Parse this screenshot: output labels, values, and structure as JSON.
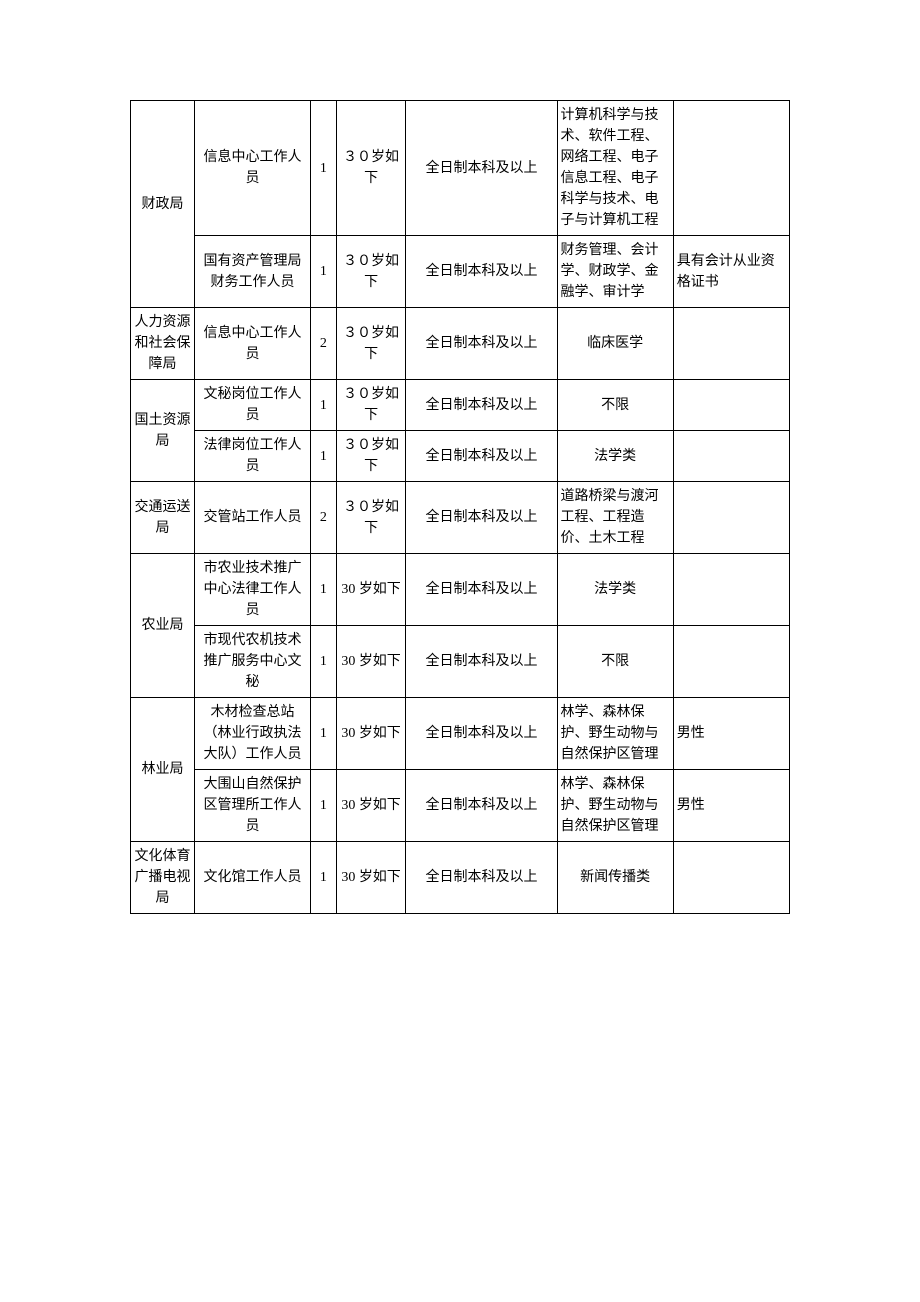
{
  "table": {
    "background_color": "#ffffff",
    "border_color": "#000000",
    "font_size": 14,
    "rows": [
      {
        "dept": "财政局",
        "dept_rowspan": 2,
        "position": "信息中心工作人员",
        "count": "1",
        "age": "３０岁如下",
        "edu": "全日制本科及以上",
        "major": "计算机科学与技术、软件工程、网络工程、电子信息工程、电子科学与技术、电子与计算机工程",
        "note": ""
      },
      {
        "position": "国有资产管理局财务工作人员",
        "count": "1",
        "age": "３０岁如下",
        "edu": "全日制本科及以上",
        "major": "财务管理、会计学、财政学、金融学、审计学",
        "note": "具有会计从业资格证书"
      },
      {
        "dept": "人力资源和社会保障局",
        "dept_rowspan": 1,
        "position": "信息中心工作人员",
        "count": "2",
        "age": "３０岁如下",
        "edu": "全日制本科及以上",
        "major": "临床医学",
        "note": ""
      },
      {
        "dept": "国土资源局",
        "dept_rowspan": 2,
        "position": "文秘岗位工作人员",
        "count": "1",
        "age": "３０岁如下",
        "edu": "全日制本科及以上",
        "major": "不限",
        "note": ""
      },
      {
        "position": "法律岗位工作人员",
        "count": "1",
        "age": "３０岁如下",
        "edu": "全日制本科及以上",
        "major": "法学类",
        "note": ""
      },
      {
        "dept": "交通运送局",
        "dept_rowspan": 1,
        "position": "交管站工作人员",
        "count": "2",
        "age": "３０岁如下",
        "edu": "全日制本科及以上",
        "major": "道路桥梁与渡河工程、工程造价、土木工程",
        "note": ""
      },
      {
        "dept": "农业局",
        "dept_rowspan": 2,
        "position": "市农业技术推广中心法律工作人员",
        "count": "1",
        "age": "30 岁如下",
        "edu": "全日制本科及以上",
        "major": "法学类",
        "note": ""
      },
      {
        "position": "市现代农机技术推广服务中心文秘",
        "count": "1",
        "age": "30 岁如下",
        "edu": "全日制本科及以上",
        "major": "不限",
        "note": ""
      },
      {
        "dept": "林业局",
        "dept_rowspan": 2,
        "position": "木材检查总站（林业行政执法大队）工作人员",
        "count": "1",
        "age": "30 岁如下",
        "edu": "全日制本科及以上",
        "major": "林学、森林保护、野生动物与自然保护区管理",
        "note": "男性"
      },
      {
        "position": "大围山自然保护区管理所工作人员",
        "count": "1",
        "age": "30 岁如下",
        "edu": "全日制本科及以上",
        "major": "林学、森林保护、野生动物与自然保护区管理",
        "note": "男性"
      },
      {
        "dept": "文化体育广播电视局",
        "dept_rowspan": 1,
        "position": "文化馆工作人员",
        "count": "1",
        "age": "30 岁如下",
        "edu": "全日制本科及以上",
        "major": "新闻传播类",
        "note": ""
      }
    ]
  }
}
